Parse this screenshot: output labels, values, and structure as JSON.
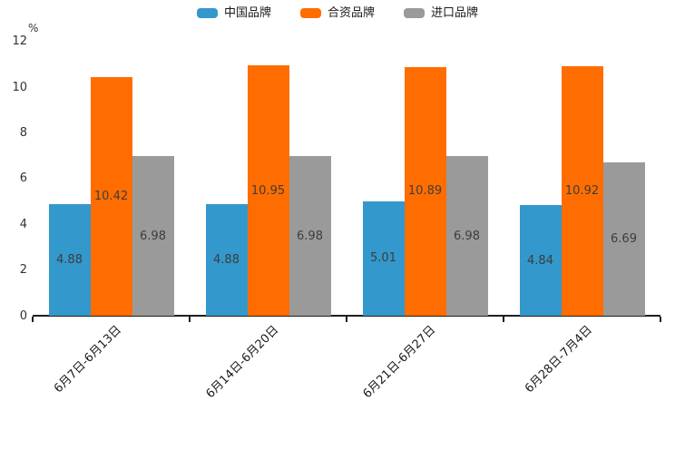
{
  "chart_data": {
    "type": "bar",
    "title": "",
    "ylabel": "%",
    "xlabel": "",
    "categories": [
      "6月7日-6月13日",
      "6月14日-6月20日",
      "6月21日-6月27日",
      "6月28日-7月4日"
    ],
    "series": [
      {
        "name": "中国品牌",
        "color": "#3398CC",
        "values": [
          4.88,
          4.88,
          5.01,
          4.84
        ]
      },
      {
        "name": "合资品牌",
        "color": "#FF6D00",
        "values": [
          10.42,
          10.95,
          10.89,
          10.92
        ]
      },
      {
        "name": "进口品牌",
        "color": "#9A9A9A",
        "values": [
          6.98,
          6.98,
          6.98,
          6.69
        ]
      }
    ],
    "ylim": [
      0,
      12
    ],
    "yticks": [
      0,
      2,
      4,
      6,
      8,
      10,
      12
    ],
    "grid": false,
    "legend_position": "top",
    "value_labels_shown": true,
    "value_label_color": "#3D3D3D",
    "axis_color": "#1F1F1F",
    "tick_label_color": "#333333",
    "background_color": "#FFFFFF"
  }
}
